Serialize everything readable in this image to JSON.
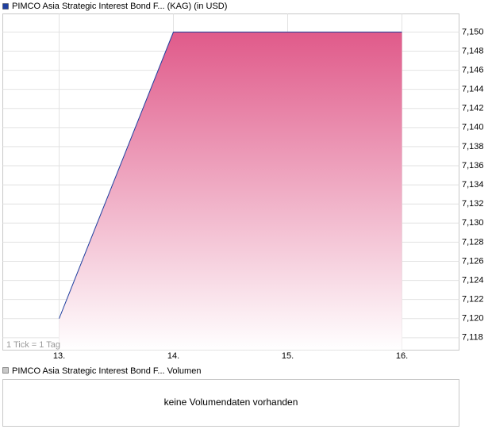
{
  "chart_data": {
    "type": "area",
    "title": "PIMCO Asia Strategic Interest Bond F... (KAG) (in USD)",
    "note": "1 Tick = 1 Tag",
    "x": [
      13,
      14,
      15,
      16
    ],
    "series": [
      {
        "name": "PIMCO Asia Strategic Interest Bond F... (KAG) (in USD)",
        "color": "#1f3f9f",
        "fill": "#e05a8a",
        "values": [
          7.12,
          7.15,
          7.15,
          7.15
        ]
      }
    ],
    "xlim": [
      12.507,
      16.5
    ],
    "xticks": [
      {
        "value": 13,
        "label": "13."
      },
      {
        "value": 14,
        "label": "14."
      },
      {
        "value": 15,
        "label": "15."
      },
      {
        "value": 16,
        "label": "16."
      }
    ],
    "ylim": [
      7.1167,
      7.1519
    ],
    "yticks": [
      {
        "value": 7.118,
        "label": "7,118"
      },
      {
        "value": 7.12,
        "label": "7,120"
      },
      {
        "value": 7.122,
        "label": "7,122"
      },
      {
        "value": 7.124,
        "label": "7,124"
      },
      {
        "value": 7.126,
        "label": "7,126"
      },
      {
        "value": 7.128,
        "label": "7,128"
      },
      {
        "value": 7.13,
        "label": "7,130"
      },
      {
        "value": 7.132,
        "label": "7,132"
      },
      {
        "value": 7.134,
        "label": "7,134"
      },
      {
        "value": 7.136,
        "label": "7,136"
      },
      {
        "value": 7.138,
        "label": "7,138"
      },
      {
        "value": 7.14,
        "label": "7,140"
      },
      {
        "value": 7.142,
        "label": "7,142"
      },
      {
        "value": 7.144,
        "label": "7,144"
      },
      {
        "value": 7.146,
        "label": "7,146"
      },
      {
        "value": 7.148,
        "label": "7,148"
      },
      {
        "value": 7.15,
        "label": "7,150"
      }
    ],
    "grid": true,
    "volume": {
      "title": "PIMCO Asia Strategic Interest Bond F... Volumen",
      "message": "keine Volumendaten vorhanden"
    }
  }
}
